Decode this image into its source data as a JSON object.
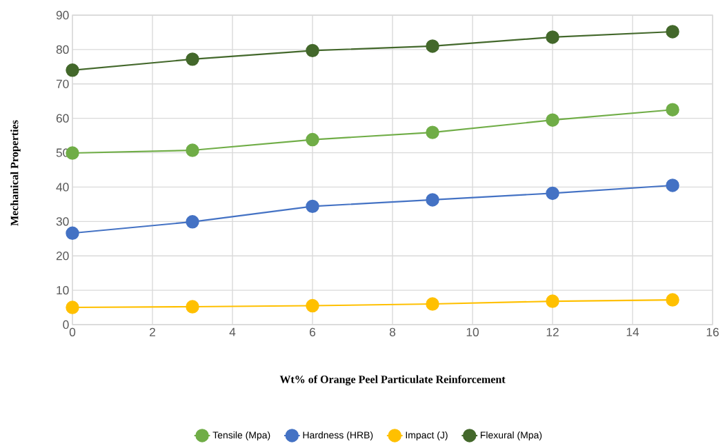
{
  "chart_data": {
    "type": "line",
    "xlabel": "Wt% of Orange Peel Particulate Reinforcement",
    "ylabel": "Mechanical Properties",
    "x": [
      0,
      3,
      6,
      9,
      12,
      15
    ],
    "series": [
      {
        "name": "Tensile (Mpa)",
        "color": "#70ad47",
        "values": [
          49.9,
          50.7,
          53.8,
          55.9,
          59.5,
          62.5
        ]
      },
      {
        "name": "Hardness (HRB)",
        "color": "#4472c4",
        "values": [
          26.6,
          29.9,
          34.4,
          36.3,
          38.2,
          40.5
        ]
      },
      {
        "name": "Impact (J)",
        "color": "#ffc000",
        "values": [
          5.0,
          5.2,
          5.5,
          6.0,
          6.8,
          7.2
        ]
      },
      {
        "name": "Flexural (Mpa)",
        "color": "#43682b",
        "values": [
          74.0,
          77.2,
          79.7,
          81.0,
          83.6,
          85.2
        ]
      }
    ],
    "xlim": [
      0,
      16
    ],
    "xticks": [
      0,
      2,
      4,
      6,
      8,
      10,
      12,
      14,
      16
    ],
    "ylim": [
      0,
      90
    ],
    "yticks": [
      0,
      10,
      20,
      30,
      40,
      50,
      60,
      70,
      80,
      90
    ],
    "grid": true,
    "legend": "bottom",
    "marker": "circle",
    "line_style": "solid"
  }
}
